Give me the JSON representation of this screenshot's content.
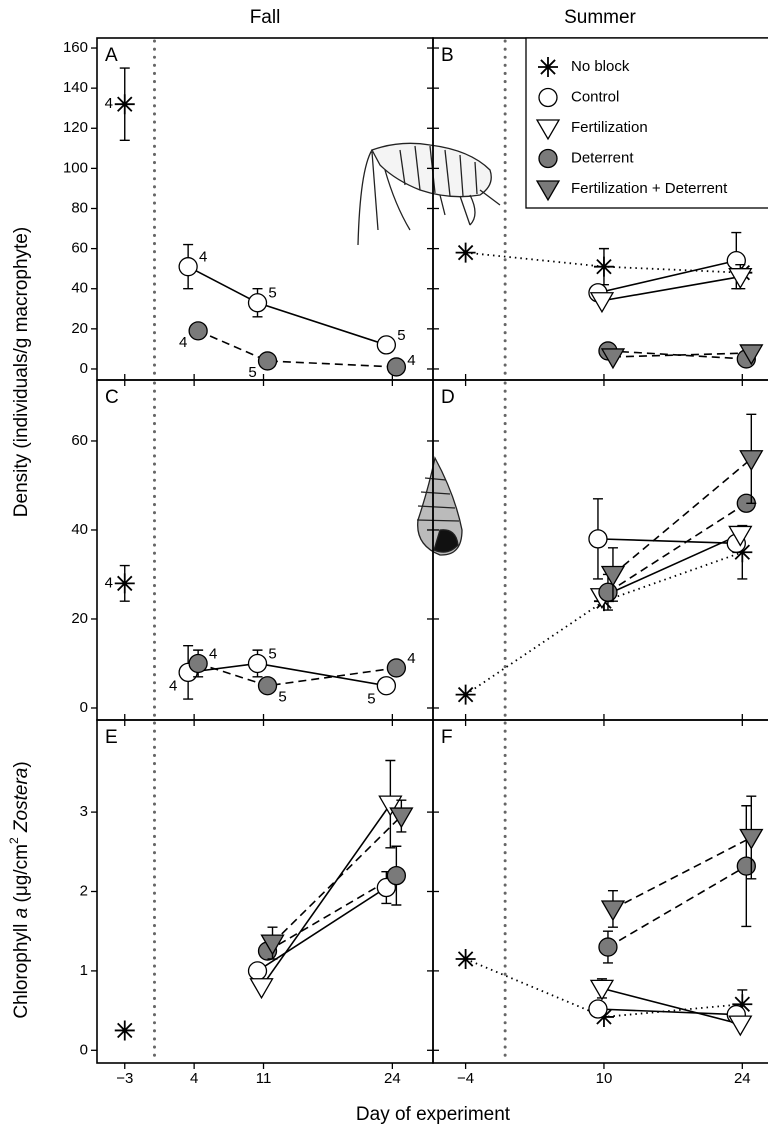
{
  "figure": {
    "columns": [
      "Fall",
      "Summer"
    ],
    "y_label_density": "Density (individuals/g macrophyte)",
    "y_label_chl": [
      "Chlorophyll ",
      "a",
      " (μg/cm",
      "2",
      " Zostera",
      ")"
    ],
    "x_label": "Day of experiment"
  },
  "chart_data": [
    {
      "type": "line",
      "label": "A",
      "xlim": [
        -5.8,
        28.1
      ],
      "ylim": [
        -5.5,
        165
      ],
      "yticks": [
        0,
        20,
        40,
        60,
        80,
        100,
        120,
        140,
        160
      ],
      "vline": 0,
      "x": [
        -3,
        4,
        11,
        24
      ],
      "series": [
        {
          "name": "No block",
          "marker": "star",
          "color": "#ffffff",
          "dash": "dotted",
          "values": [
            132,
            null,
            null,
            null
          ],
          "errors": [
            18,
            null,
            null,
            null
          ],
          "n_labels": [
            4,
            null,
            null,
            null
          ]
        },
        {
          "name": "Control",
          "marker": "circle",
          "color": "#ffffff",
          "dash": "solid",
          "values": [
            null,
            51,
            33,
            12
          ],
          "errors": [
            null,
            11,
            7,
            null
          ],
          "n_labels": [
            null,
            4,
            5,
            5
          ]
        },
        {
          "name": "Deterrent",
          "marker": "circle",
          "color": "#7a7a7a",
          "dash": "dashed",
          "values": [
            null,
            19,
            4,
            1
          ],
          "errors": [
            null,
            null,
            null,
            null
          ],
          "n_labels": [
            null,
            4,
            5,
            4
          ]
        }
      ]
    },
    {
      "type": "line",
      "label": "B",
      "xlim": [
        -7.3,
        26.6
      ],
      "ylim": [
        -5.5,
        165
      ],
      "vline": 0,
      "x": [
        -4,
        10,
        24
      ],
      "legend": "upper right",
      "series": [
        {
          "name": "No block",
          "marker": "star",
          "color": "#ffffff",
          "dash": "dotted",
          "values": [
            58,
            51,
            48
          ],
          "errors": [
            null,
            9,
            null
          ]
        },
        {
          "name": "Control",
          "marker": "circle",
          "color": "#ffffff",
          "dash": "solid",
          "values": [
            null,
            38,
            54
          ],
          "errors": [
            null,
            null,
            14
          ]
        },
        {
          "name": "Fertilization",
          "marker": "triangle",
          "color": "#ffffff",
          "dash": "solid",
          "values": [
            null,
            34,
            46
          ],
          "errors": [
            null,
            null,
            6
          ]
        },
        {
          "name": "Deterrent",
          "marker": "circle",
          "color": "#7a7a7a",
          "dash": "dashed",
          "values": [
            null,
            9,
            5
          ],
          "errors": [
            null,
            null,
            null
          ]
        },
        {
          "name": "Fertilization + Deterrent",
          "marker": "triangle",
          "color": "#7a7a7a",
          "dash": "dashed",
          "values": [
            null,
            6,
            8
          ],
          "errors": [
            null,
            null,
            null
          ]
        }
      ]
    },
    {
      "type": "line",
      "label": "C",
      "xlim": [
        -5.8,
        28.1
      ],
      "ylim": [
        -2.7,
        73.7
      ],
      "yticks": [
        0,
        20,
        40,
        60
      ],
      "vline": 0,
      "x": [
        -3,
        4,
        11,
        24
      ],
      "series": [
        {
          "name": "No block",
          "marker": "star",
          "color": "#ffffff",
          "dash": "dotted",
          "values": [
            28,
            null,
            null,
            null
          ],
          "errors": [
            4,
            null,
            null,
            null
          ],
          "n_labels": [
            4,
            null,
            null,
            null
          ]
        },
        {
          "name": "Control",
          "marker": "circle",
          "color": "#ffffff",
          "dash": "solid",
          "values": [
            null,
            8,
            10,
            5
          ],
          "errors": [
            null,
            6,
            3,
            null
          ],
          "n_labels": [
            null,
            4,
            5,
            5
          ]
        },
        {
          "name": "Deterrent",
          "marker": "circle",
          "color": "#7a7a7a",
          "dash": "dashed",
          "values": [
            null,
            10,
            5,
            9
          ],
          "errors": [
            null,
            3,
            null,
            null
          ],
          "n_labels": [
            null,
            4,
            5,
            4
          ]
        }
      ]
    },
    {
      "type": "line",
      "label": "D",
      "xlim": [
        -7.3,
        26.6
      ],
      "ylim": [
        -2.7,
        73.7
      ],
      "vline": 0,
      "x": [
        -4,
        10,
        24
      ],
      "series": [
        {
          "name": "No block",
          "marker": "star",
          "color": "#ffffff",
          "dash": "dotted",
          "values": [
            3,
            24,
            35
          ],
          "errors": [
            null,
            null,
            6
          ]
        },
        {
          "name": "Control",
          "marker": "circle",
          "color": "#ffffff",
          "dash": "solid",
          "values": [
            null,
            38,
            37
          ],
          "errors": [
            null,
            9,
            null
          ]
        },
        {
          "name": "Fertilization",
          "marker": "triangle",
          "color": "#ffffff",
          "dash": "solid",
          "values": [
            null,
            25,
            39
          ],
          "errors": [
            null,
            null,
            null
          ]
        },
        {
          "name": "Deterrent",
          "marker": "circle",
          "color": "#7a7a7a",
          "dash": "dashed",
          "values": [
            null,
            26,
            46
          ],
          "errors": [
            null,
            4,
            null
          ]
        },
        {
          "name": "Fertilization + Deterrent",
          "marker": "triangle",
          "color": "#7a7a7a",
          "dash": "dashed",
          "values": [
            null,
            30,
            56
          ],
          "errors": [
            null,
            6,
            10
          ]
        }
      ]
    },
    {
      "type": "line",
      "label": "E",
      "xlim": [
        -5.8,
        28.1
      ],
      "ylim": [
        -0.16,
        4.16
      ],
      "yticks": [
        0,
        1,
        2,
        3
      ],
      "vline": 0,
      "x": [
        -3,
        4,
        11,
        24
      ],
      "xticks": [
        {
          "value": -3,
          "label": "−3"
        },
        4,
        11,
        24
      ],
      "series": [
        {
          "name": "No block",
          "marker": "star",
          "color": "#ffffff",
          "dash": "dotted",
          "values": [
            0.25,
            null,
            null,
            null
          ],
          "errors": [
            null,
            null,
            null,
            null
          ]
        },
        {
          "name": "Control",
          "marker": "circle",
          "color": "#ffffff",
          "dash": "solid",
          "values": [
            null,
            null,
            1.0,
            2.05
          ],
          "errors": [
            null,
            null,
            null,
            0.2
          ]
        },
        {
          "name": "Fertilization",
          "marker": "triangle",
          "color": "#ffffff",
          "dash": "solid",
          "values": [
            null,
            null,
            0.8,
            3.1
          ],
          "errors": [
            null,
            null,
            null,
            0.55
          ]
        },
        {
          "name": "Deterrent",
          "marker": "circle",
          "color": "#7a7a7a",
          "dash": "dashed",
          "values": [
            null,
            null,
            1.25,
            2.2
          ],
          "errors": [
            null,
            null,
            null,
            0.37
          ]
        },
        {
          "name": "Fertilization + Deterrent",
          "marker": "triangle",
          "color": "#7a7a7a",
          "dash": "dashed",
          "values": [
            null,
            null,
            1.35,
            2.95
          ],
          "errors": [
            null,
            null,
            0.2,
            0.2
          ]
        }
      ]
    },
    {
      "type": "line",
      "label": "F",
      "xlim": [
        -7.3,
        26.6
      ],
      "ylim": [
        -0.16,
        4.16
      ],
      "vline": 0,
      "x": [
        -4,
        10,
        24
      ],
      "xticks": [
        {
          "value": -4,
          "label": "−4"
        },
        10,
        24
      ],
      "series": [
        {
          "name": "No block",
          "marker": "star",
          "color": "#ffffff",
          "dash": "dotted",
          "values": [
            1.15,
            0.42,
            0.58
          ],
          "errors": [
            null,
            null,
            0.18
          ]
        },
        {
          "name": "Control",
          "marker": "circle",
          "color": "#ffffff",
          "dash": "solid",
          "values": [
            null,
            0.52,
            0.45
          ],
          "errors": [
            null,
            null,
            null
          ]
        },
        {
          "name": "Fertilization",
          "marker": "triangle",
          "color": "#ffffff",
          "dash": "solid",
          "values": [
            null,
            0.78,
            0.33
          ],
          "errors": [
            null,
            0.12,
            null
          ]
        },
        {
          "name": "Deterrent",
          "marker": "circle",
          "color": "#7a7a7a",
          "dash": "dashed",
          "values": [
            null,
            1.3,
            2.32
          ],
          "errors": [
            null,
            0.2,
            0.76
          ]
        },
        {
          "name": "Fertilization + Deterrent",
          "marker": "triangle",
          "color": "#7a7a7a",
          "dash": "dashed",
          "values": [
            null,
            1.78,
            2.68
          ],
          "errors": [
            null,
            0.23,
            0.52
          ]
        }
      ]
    }
  ]
}
